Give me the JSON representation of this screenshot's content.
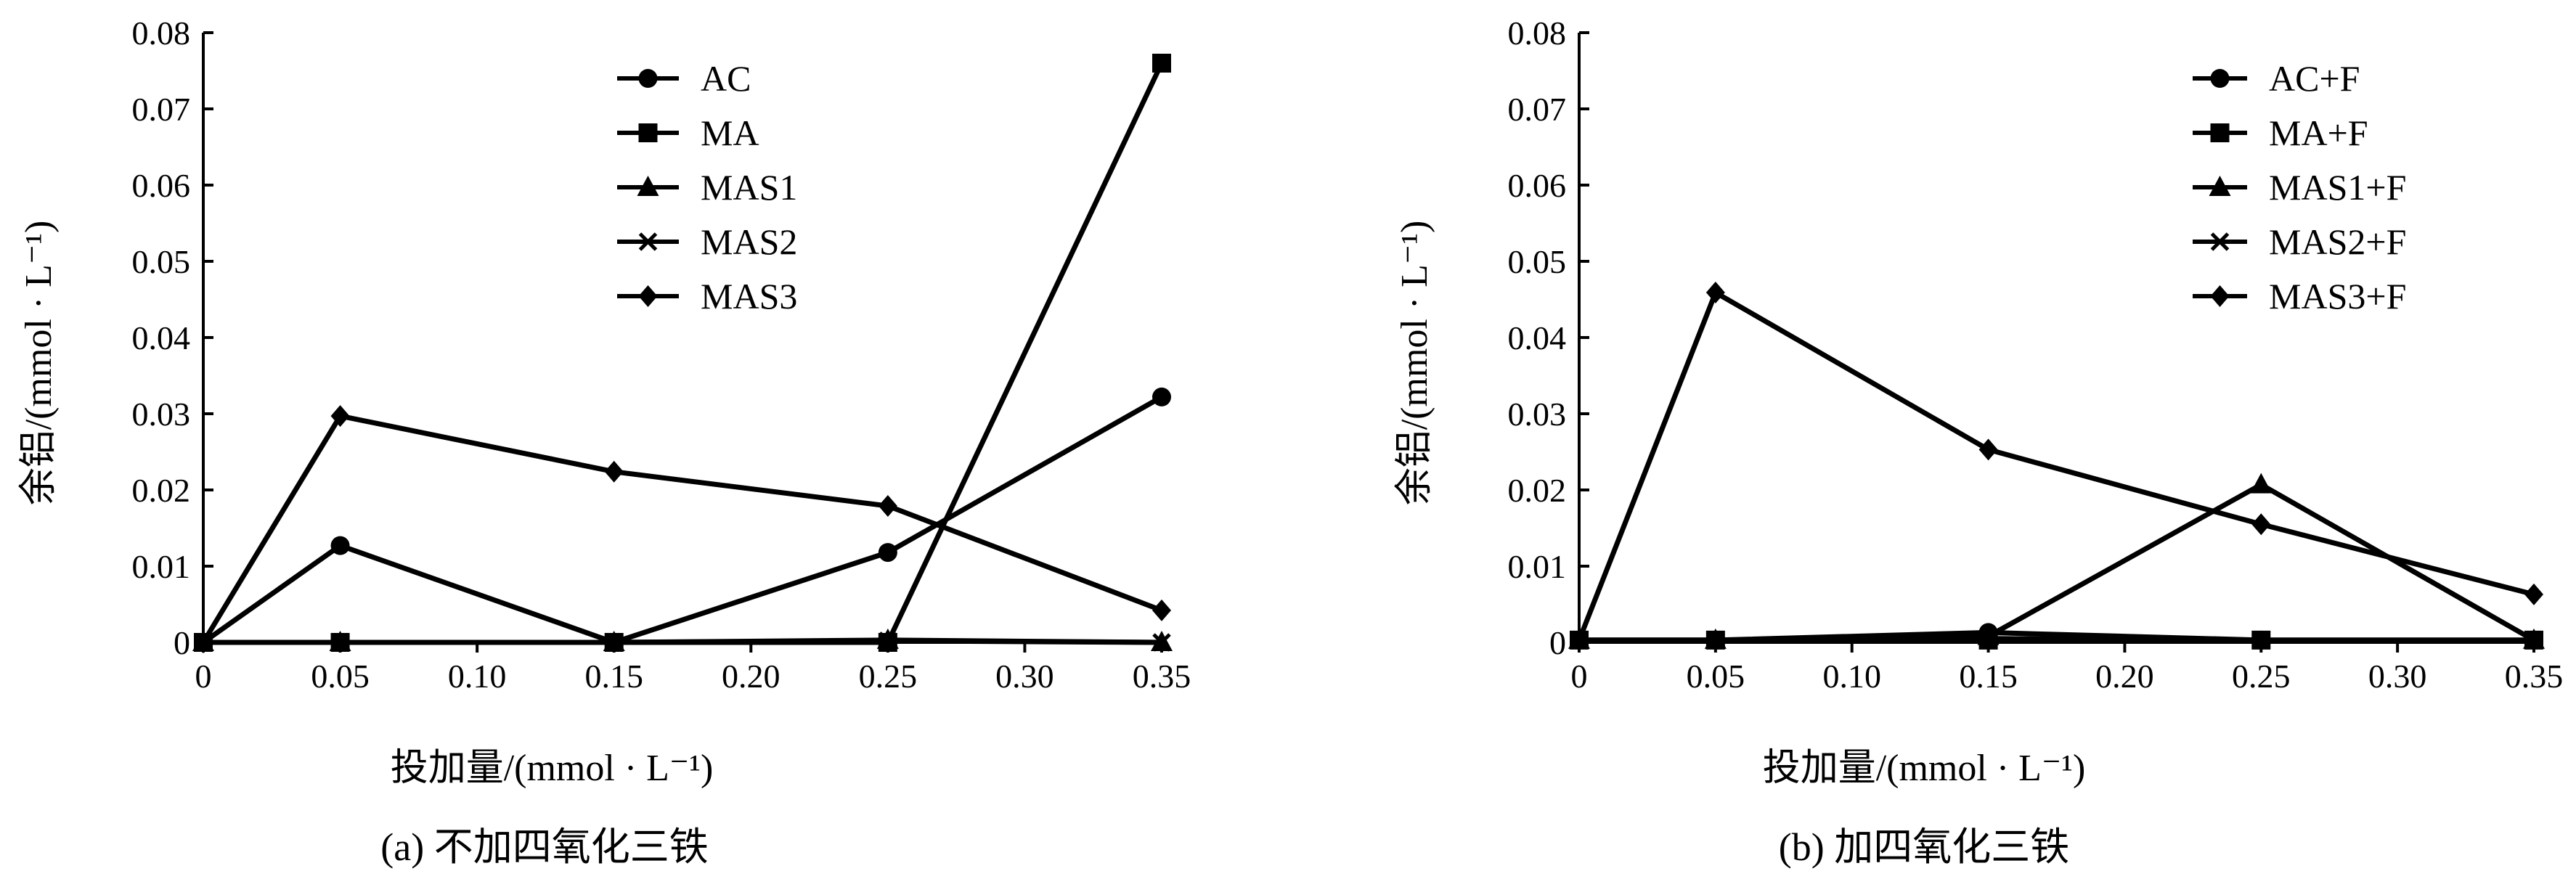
{
  "chart_data": [
    {
      "type": "line",
      "id": "a",
      "caption": "(a) 不加四氧化三铁",
      "xlabel": "投加量/(mmol · L⁻¹)",
      "ylabel": "余铝/(mmol · L⁻¹)",
      "x": [
        0,
        0.05,
        0.15,
        0.25,
        0.35
      ],
      "x_tick_labels": [
        "0",
        "0.05",
        "0.10",
        "0.15",
        "0.20",
        "0.25",
        "0.30",
        "0.35"
      ],
      "y_tick_labels": [
        "0",
        "0.01",
        "0.02",
        "0.03",
        "0.04",
        "0.05",
        "0.06",
        "0.07",
        "0.08"
      ],
      "ylim": [
        0,
        0.08
      ],
      "grid": false,
      "legend_position": "top-center",
      "series": [
        {
          "name": "AC",
          "marker": "circle",
          "values": [
            0,
            0.0127,
            0,
            0.0118,
            0.0322
          ]
        },
        {
          "name": "MA",
          "marker": "square",
          "values": [
            0,
            0,
            0,
            0,
            0.076
          ]
        },
        {
          "name": "MAS1",
          "marker": "triangle",
          "values": [
            0,
            0,
            0,
            0.0003,
            0
          ]
        },
        {
          "name": "MAS2",
          "marker": "x",
          "values": [
            0,
            0,
            0,
            0.0002,
            0
          ]
        },
        {
          "name": "MAS3",
          "marker": "diamond",
          "values": [
            0,
            0.0297,
            0.0224,
            0.0179,
            0.0042
          ]
        }
      ]
    },
    {
      "type": "line",
      "id": "b",
      "caption": "(b) 加四氧化三铁",
      "xlabel": "投加量/(mmol · L⁻¹)",
      "ylabel": "余铝/(mmol · L⁻¹)",
      "x": [
        0,
        0.05,
        0.15,
        0.25,
        0.35
      ],
      "x_tick_labels": [
        "0",
        "0.05",
        "0.10",
        "0.15",
        "0.20",
        "0.25",
        "0.30",
        "0.35"
      ],
      "y_tick_labels": [
        "0",
        "0.01",
        "0.02",
        "0.03",
        "0.04",
        "0.05",
        "0.06",
        "0.07",
        "0.08"
      ],
      "ylim": [
        0,
        0.08
      ],
      "grid": false,
      "legend_position": "top-right",
      "series": [
        {
          "name": "AC+F",
          "marker": "circle",
          "values": [
            0.0003,
            0.0003,
            0.0013,
            0.0003,
            0.0003
          ]
        },
        {
          "name": "MA+F",
          "marker": "square",
          "values": [
            0.0003,
            0.0003,
            0.0003,
            0.0003,
            0.0003
          ]
        },
        {
          "name": "MAS1+F",
          "marker": "triangle",
          "values": [
            0.0003,
            0.0003,
            0.0008,
            0.0207,
            0.0003
          ]
        },
        {
          "name": "MAS2+F",
          "marker": "x",
          "values": [
            0.0003,
            0.0003,
            0.0005,
            0.0003,
            0.0003
          ]
        },
        {
          "name": "MAS3+F",
          "marker": "diamond",
          "values": [
            0.0003,
            0.0459,
            0.0253,
            0.0155,
            0.0063
          ]
        }
      ]
    }
  ]
}
